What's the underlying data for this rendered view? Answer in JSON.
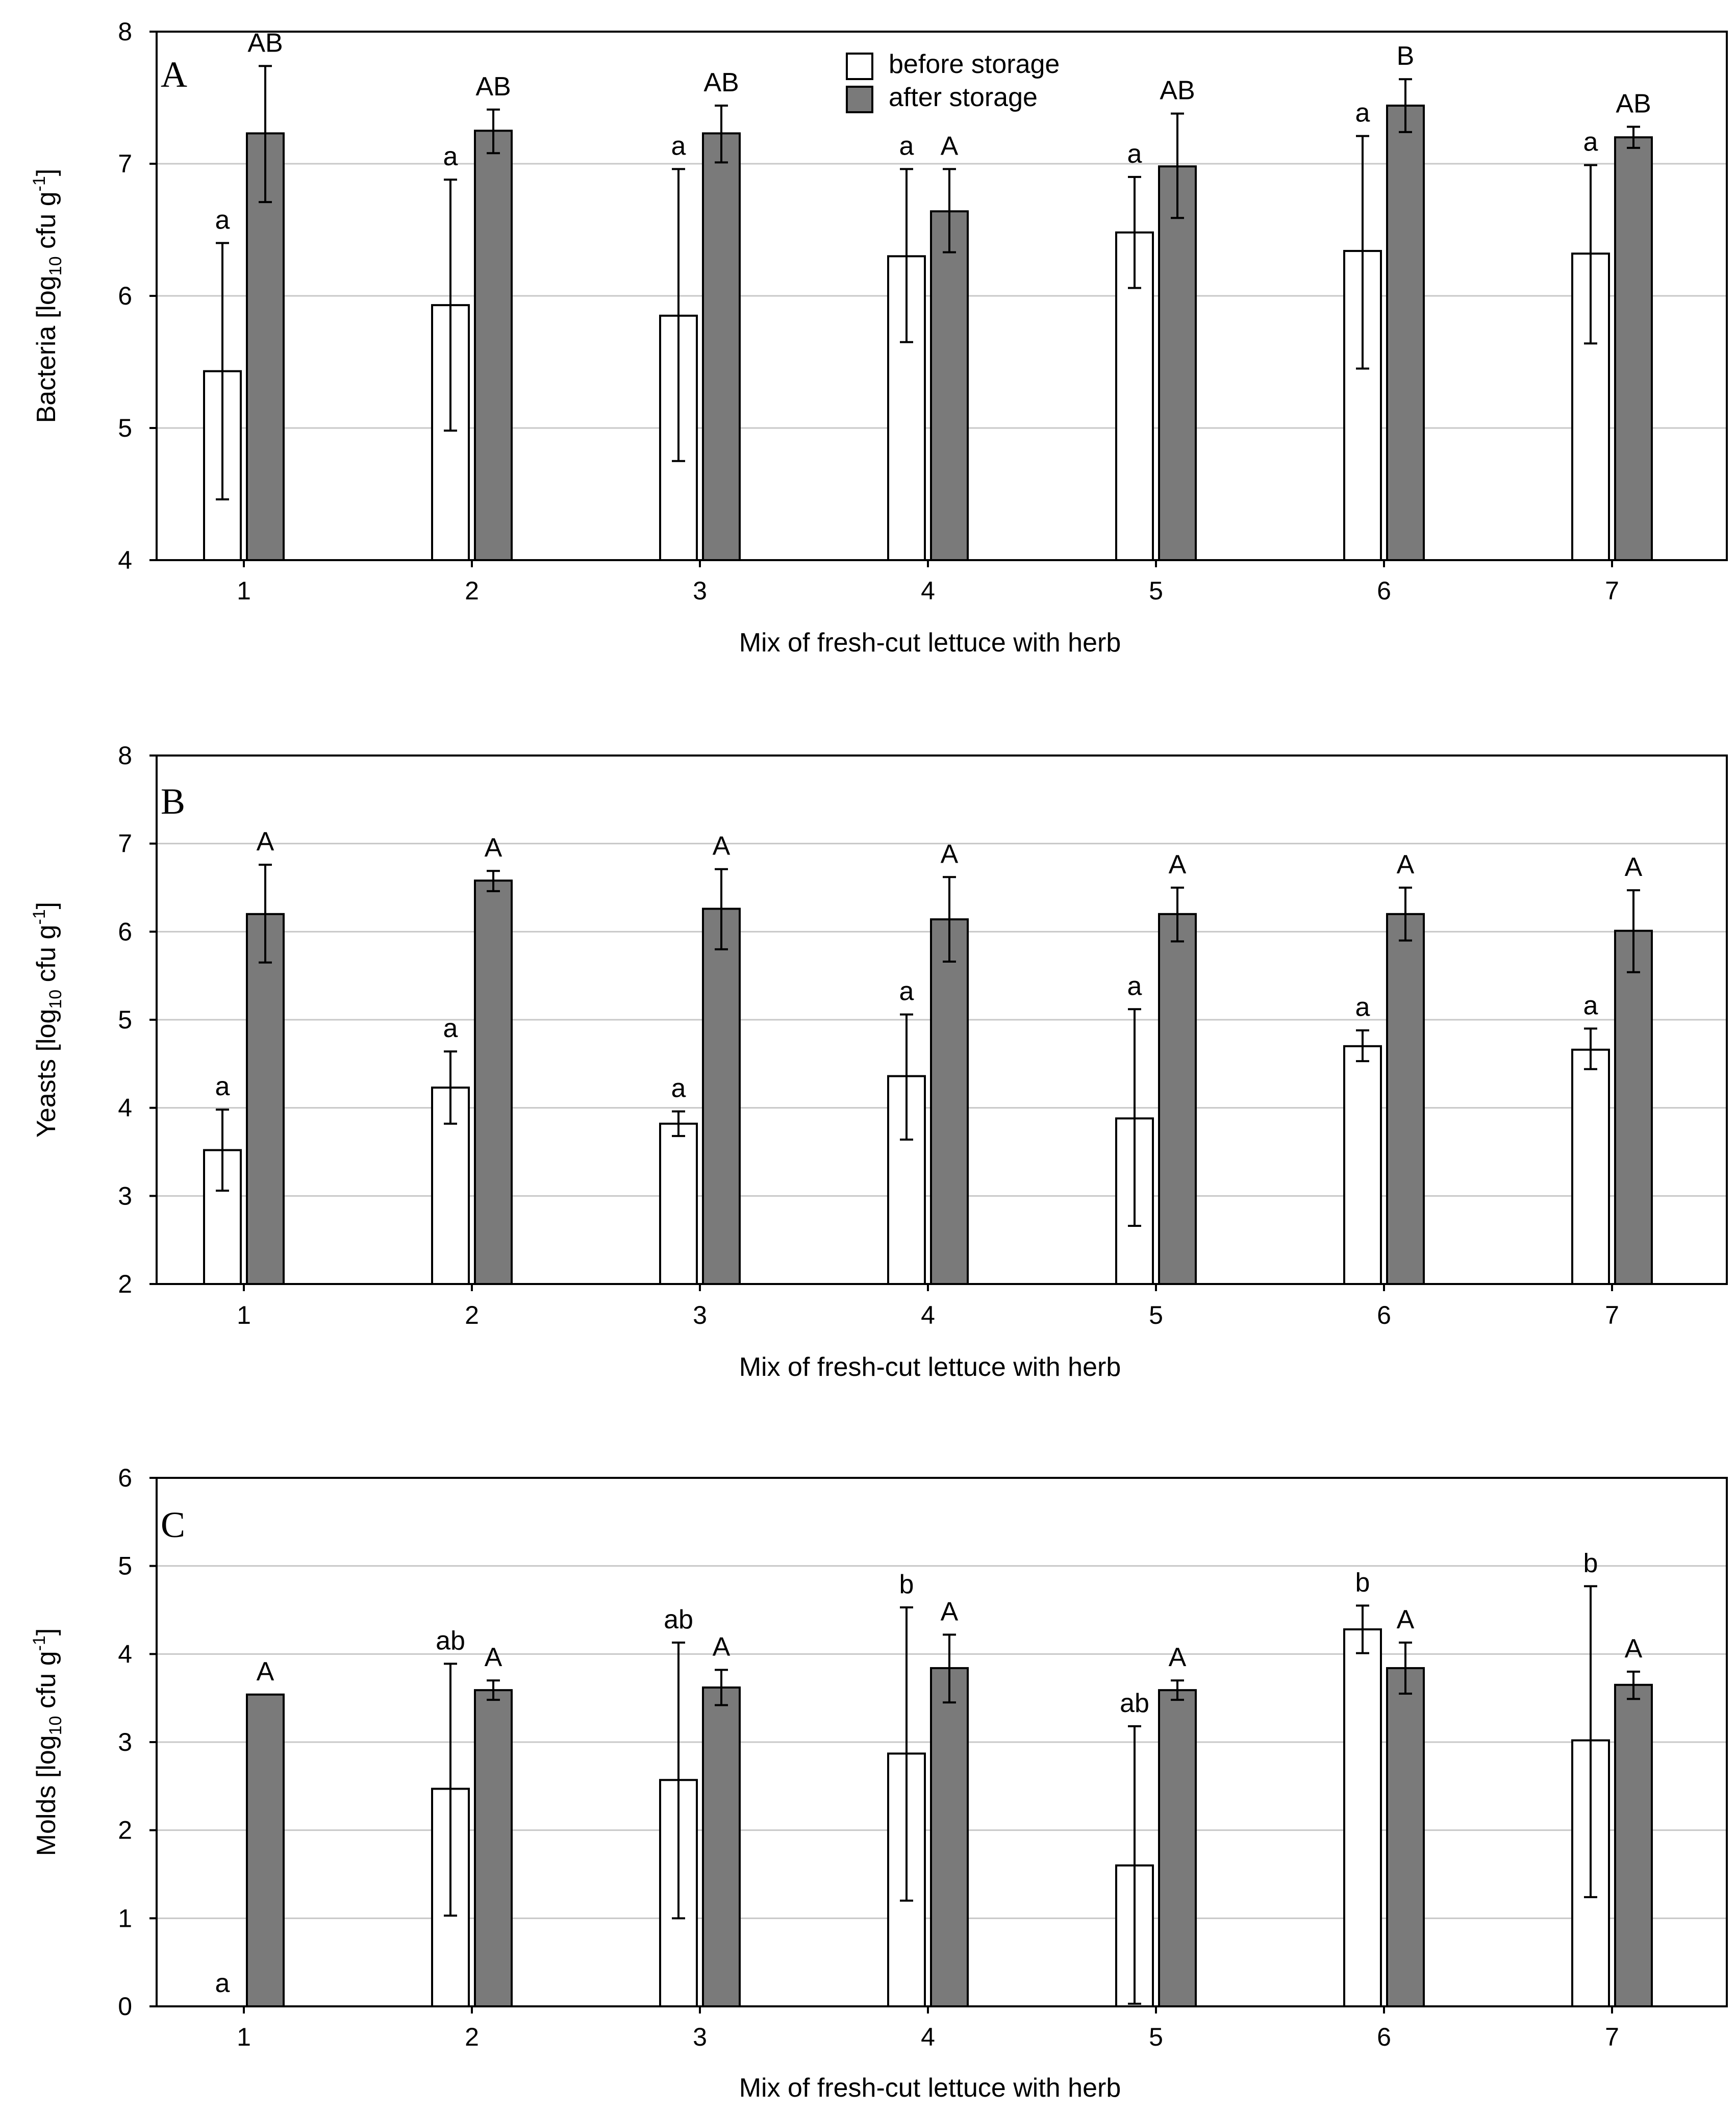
{
  "legend": {
    "before_label": "before storage",
    "after_label": "after storage",
    "before_color": "#ffffff",
    "after_color": "#7a7a7a"
  },
  "chart_data": [
    {
      "type": "bar",
      "panel": "A",
      "xlabel": "Mix of fresh-cut lettuce with herb",
      "ylabel_main": "Bacteria [log",
      "ylabel_sub": "10",
      "ylabel_rest": " cfu g",
      "ylabel_sup": "-1",
      "ylabel_end": "]",
      "ylim": [
        4,
        8
      ],
      "yticks": [
        4,
        5,
        6,
        7,
        8
      ],
      "categories": [
        "1",
        "2",
        "3",
        "4",
        "5",
        "6",
        "7"
      ],
      "series": [
        {
          "name": "before storage",
          "values": [
            5.43,
            5.93,
            5.85,
            6.3,
            6.48,
            6.34,
            6.32
          ],
          "err_low": [
            4.46,
            4.98,
            4.75,
            5.65,
            6.06,
            5.45,
            5.64
          ],
          "err_high": [
            6.4,
            6.88,
            6.96,
            6.96,
            6.9,
            7.21,
            6.99
          ],
          "labels": [
            "a",
            "a",
            "a",
            "a",
            "a",
            "a",
            "a"
          ]
        },
        {
          "name": "after storage",
          "values": [
            7.23,
            7.25,
            7.23,
            6.64,
            6.98,
            7.44,
            7.2
          ],
          "err_low": [
            6.71,
            7.08,
            7.01,
            6.33,
            6.59,
            7.24,
            7.12
          ],
          "err_high": [
            7.74,
            7.41,
            7.44,
            6.96,
            7.38,
            7.64,
            7.28
          ],
          "labels": [
            "AB",
            "AB",
            "AB",
            "A",
            "AB",
            "B",
            "AB"
          ]
        }
      ]
    },
    {
      "type": "bar",
      "panel": "B",
      "xlabel": "Mix of fresh-cut lettuce with herb",
      "ylabel_main": "Yeasts [log",
      "ylabel_sub": "10",
      "ylabel_rest": " cfu g",
      "ylabel_sup": "-1",
      "ylabel_end": "]",
      "ylim": [
        2,
        8
      ],
      "yticks": [
        2,
        3,
        4,
        5,
        6,
        7,
        8
      ],
      "categories": [
        "1",
        "2",
        "3",
        "4",
        "5",
        "6",
        "7"
      ],
      "series": [
        {
          "name": "before storage",
          "values": [
            3.52,
            4.23,
            3.82,
            4.36,
            3.88,
            4.7,
            4.66
          ],
          "err_low": [
            3.06,
            3.82,
            3.68,
            3.64,
            2.66,
            4.53,
            4.44
          ],
          "err_high": [
            3.98,
            4.64,
            3.96,
            5.06,
            5.12,
            4.88,
            4.9
          ],
          "labels": [
            "a",
            "a",
            "a",
            "a",
            "a",
            "a",
            "a"
          ]
        },
        {
          "name": "after storage",
          "values": [
            6.2,
            6.58,
            6.26,
            6.14,
            6.2,
            6.2,
            6.01
          ],
          "err_low": [
            5.65,
            6.46,
            5.8,
            5.66,
            5.89,
            5.9,
            5.54
          ],
          "err_high": [
            6.76,
            6.69,
            6.71,
            6.62,
            6.5,
            6.5,
            6.47
          ],
          "labels": [
            "A",
            "A",
            "A",
            "A",
            "A",
            "A",
            "A"
          ]
        }
      ]
    },
    {
      "type": "bar",
      "panel": "C",
      "xlabel": "Mix of fresh-cut lettuce with herb",
      "ylabel_main": "Molds [log",
      "ylabel_sub": "10",
      "ylabel_rest": " cfu g",
      "ylabel_sup": "-1",
      "ylabel_end": "]",
      "ylim": [
        0,
        6
      ],
      "yticks": [
        0,
        1,
        2,
        3,
        4,
        5,
        6
      ],
      "categories": [
        "1",
        "2",
        "3",
        "4",
        "5",
        "6",
        "7"
      ],
      "series": [
        {
          "name": "before storage",
          "values": [
            0,
            2.47,
            2.57,
            2.87,
            1.6,
            4.28,
            3.02
          ],
          "err_low": [
            0,
            1.03,
            1.0,
            1.2,
            0.03,
            4.01,
            1.24
          ],
          "err_high": [
            0,
            3.89,
            4.13,
            4.53,
            3.18,
            4.55,
            4.77
          ],
          "labels": [
            "a",
            "ab",
            "ab",
            "b",
            "ab",
            "b",
            "b"
          ]
        },
        {
          "name": "after storage",
          "values": [
            3.54,
            3.59,
            3.62,
            3.84,
            3.59,
            3.84,
            3.65
          ],
          "err_low": [
            3.54,
            3.48,
            3.42,
            3.45,
            3.48,
            3.55,
            3.49
          ],
          "err_high": [
            3.54,
            3.7,
            3.82,
            4.22,
            3.7,
            4.13,
            3.8
          ],
          "labels": [
            "A",
            "A",
            "A",
            "A",
            "A",
            "A",
            "A"
          ]
        }
      ]
    }
  ]
}
